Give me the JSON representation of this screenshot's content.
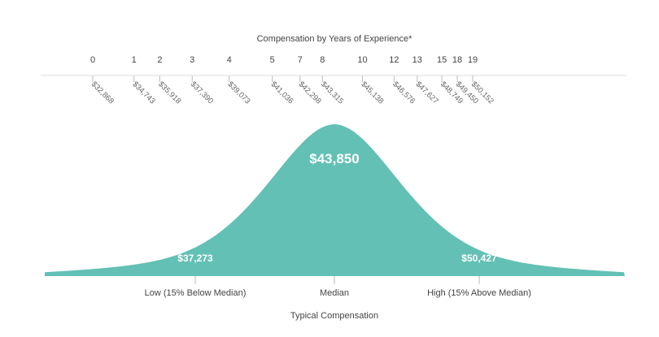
{
  "chart_data": {
    "type": "area",
    "title": "Compensation by Years of Experience*",
    "xlabel": "Typical Compensation",
    "experience": {
      "years": [
        "0",
        "1",
        "2",
        "3",
        "4",
        "5",
        "7",
        "8",
        "10",
        "12",
        "13",
        "15",
        "18",
        "19"
      ],
      "salaries": [
        32868,
        34743,
        35918,
        37390,
        39073,
        41036,
        42298,
        43315,
        45138,
        46576,
        47627,
        48749,
        49450,
        50152
      ],
      "salary_labels": [
        "$32,868",
        "$34,743",
        "$35,918",
        "$37,390",
        "$39,073",
        "$41,036",
        "$42,298",
        "$43,315",
        "$45,138",
        "$46,576",
        "$47,627",
        "$48,749",
        "$49,450",
        "$50,152"
      ]
    },
    "distribution": {
      "low": {
        "value": 37273,
        "value_label": "$37,273",
        "label": "Low (15% Below Median)"
      },
      "median": {
        "value": 43850,
        "value_label": "$43,850",
        "label": "Median"
      },
      "high": {
        "value": 50427,
        "value_label": "$50,427",
        "label": "High (15% Above Median)"
      }
    },
    "colors": {
      "curve": "#63c0b5",
      "axis_line": "#dddddd",
      "tick": "#bbbbbb"
    }
  }
}
